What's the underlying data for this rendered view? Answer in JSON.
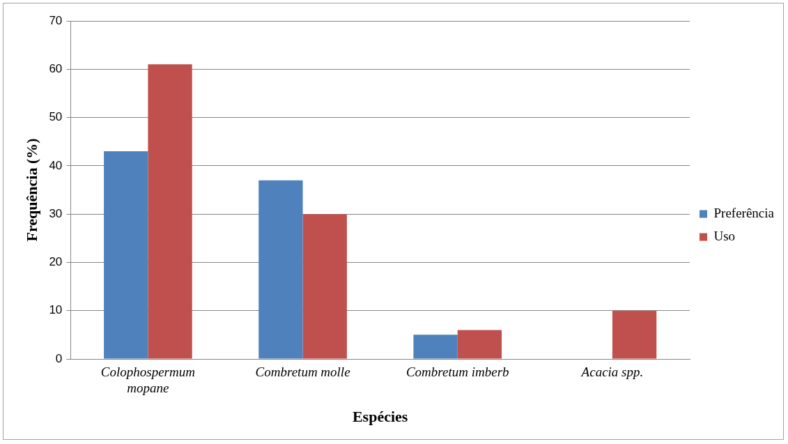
{
  "chart_data": {
    "type": "bar",
    "xlabel": "Espécies",
    "ylabel": "Frequência (%)",
    "categories": [
      "Colophospermum mopane",
      "Combretum molle",
      "Combretum imberb",
      "Acacia spp."
    ],
    "series": [
      {
        "name": "Preferência",
        "color": "#4f81bd",
        "values": [
          43,
          37,
          5,
          0
        ]
      },
      {
        "name": "Uso",
        "color": "#c0504d",
        "values": [
          61,
          30,
          6,
          10
        ]
      }
    ],
    "ylim": [
      0,
      70
    ],
    "yticks": [
      0,
      10,
      20,
      30,
      40,
      50,
      60,
      70
    ],
    "grid": "y",
    "legend": "right"
  }
}
